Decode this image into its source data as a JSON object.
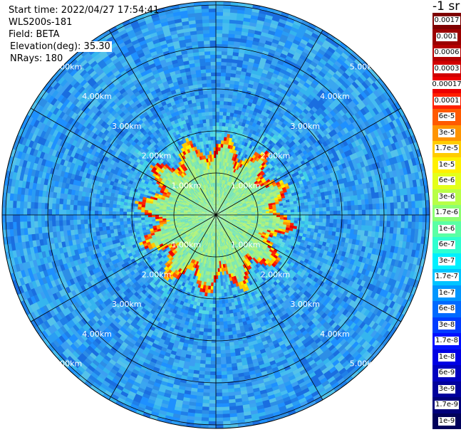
{
  "header": {
    "start_time": "Start time: 2022/04/27 17:54:41",
    "instrument": "WLS200s-181",
    "field": "Field: BETA",
    "elevation": "Elevation(deg): 35.30",
    "nrays": "NRays: 180"
  },
  "unit_label": "-1 sr",
  "range_rings": [
    {
      "label": "1.00km",
      "km": 1
    },
    {
      "label": "2.00km",
      "km": 2
    },
    {
      "label": "3.00km",
      "km": 3
    },
    {
      "label": "4.00km",
      "km": 4
    },
    {
      "label": "5.00km",
      "km": 5
    }
  ],
  "colorbar": [
    {
      "label": "0.0017",
      "color": "#7f0000"
    },
    {
      "label": "0.001",
      "color": "#9c0000"
    },
    {
      "label": "0.0006",
      "color": "#b40000"
    },
    {
      "label": "0.0003",
      "color": "#d00000"
    },
    {
      "label": "0.00017",
      "color": "#ec0000"
    },
    {
      "label": "0.0001",
      "color": "#ff2000"
    },
    {
      "label": "6e-5",
      "color": "#ff5a00"
    },
    {
      "label": "3e-5",
      "color": "#ff9400"
    },
    {
      "label": "1.7e-5",
      "color": "#ffcc00"
    },
    {
      "label": "1e-5",
      "color": "#fff000"
    },
    {
      "label": "6e-6",
      "color": "#e4ff1a"
    },
    {
      "label": "3e-6",
      "color": "#b8ff46"
    },
    {
      "label": "1.7e-6",
      "color": "#8cff72"
    },
    {
      "label": "1e-6",
      "color": "#5affa4"
    },
    {
      "label": "6e-7",
      "color": "#2effd0"
    },
    {
      "label": "3e-7",
      "color": "#00f0ff"
    },
    {
      "label": "1.7e-7",
      "color": "#00c4ff"
    },
    {
      "label": "1e-7",
      "color": "#0096ff"
    },
    {
      "label": "6e-8",
      "color": "#006aff"
    },
    {
      "label": "3e-8",
      "color": "#003cff"
    },
    {
      "label": "1.7e-8",
      "color": "#0010ff"
    },
    {
      "label": "1e-8",
      "color": "#0000e4"
    },
    {
      "label": "6e-9",
      "color": "#0000c0"
    },
    {
      "label": "3e-9",
      "color": "#00009c"
    },
    {
      "label": "1.7e-9",
      "color": "#00007a"
    },
    {
      "label": "1e-9",
      "color": "#00005a"
    }
  ]
}
